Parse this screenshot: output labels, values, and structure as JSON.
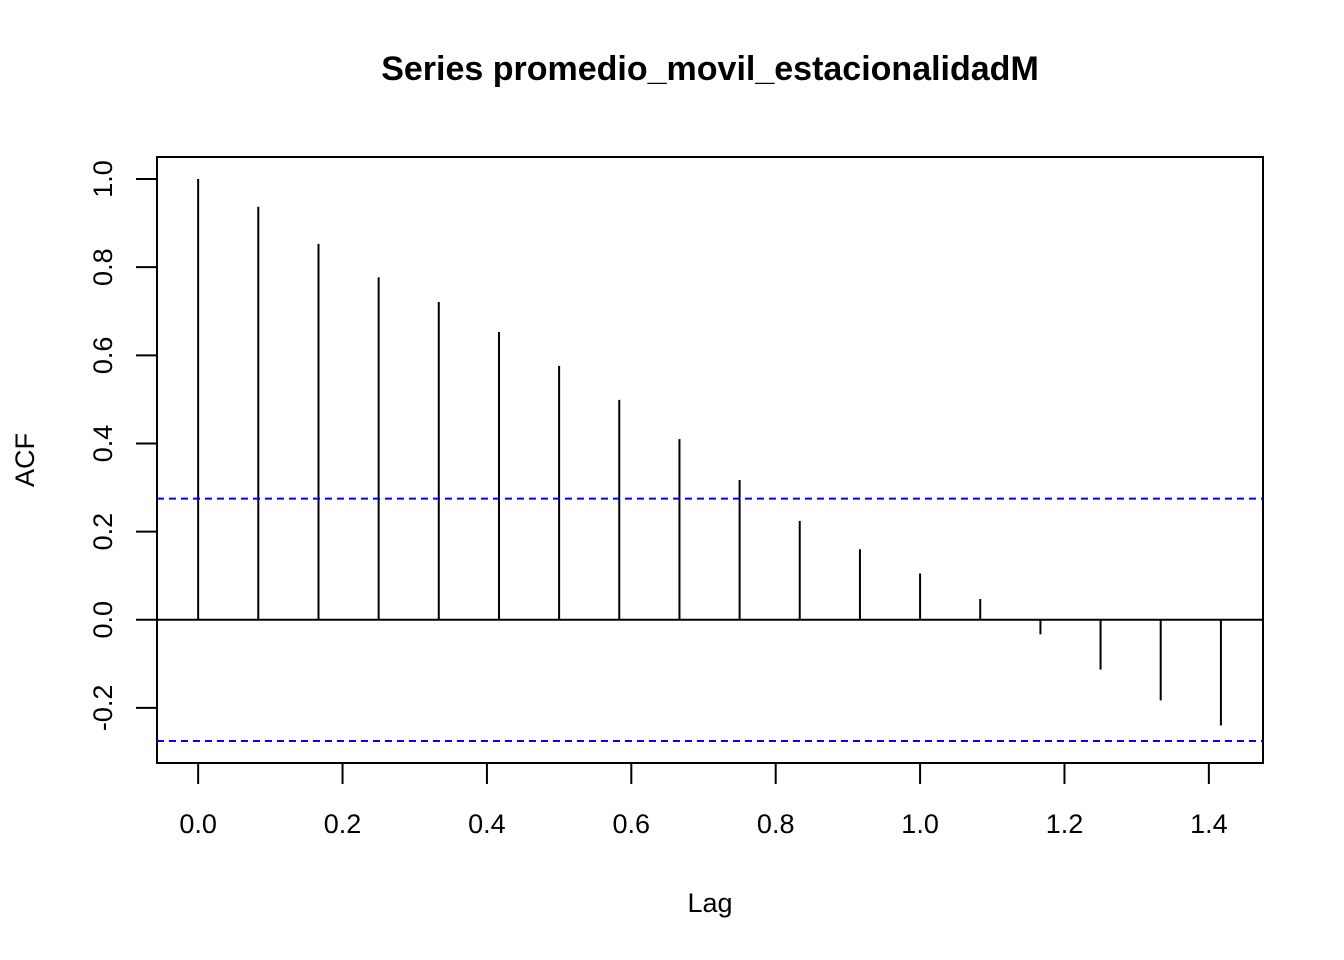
{
  "chart_data": {
    "type": "bar",
    "title": "Series  promedio_movil_estacionalidadM",
    "xlabel": "Lag",
    "ylabel": "ACF",
    "xlim": [
      -0.057,
      1.475
    ],
    "ylim": [
      -0.325,
      1.05
    ],
    "x_ticks": [
      0.0,
      0.2,
      0.4,
      0.6,
      0.8,
      1.0,
      1.2,
      1.4
    ],
    "x_tick_labels": [
      "0.0",
      "0.2",
      "0.4",
      "0.6",
      "0.8",
      "1.0",
      "1.2",
      "1.4"
    ],
    "y_ticks": [
      -0.2,
      0.0,
      0.2,
      0.4,
      0.6,
      0.8,
      1.0
    ],
    "y_tick_labels": [
      "-0.2",
      "0.0",
      "0.2",
      "0.4",
      "0.6",
      "0.8",
      "1.0"
    ],
    "lags": [
      0.0,
      0.0833,
      0.1667,
      0.25,
      0.3333,
      0.4167,
      0.5,
      0.5833,
      0.6667,
      0.75,
      0.8333,
      0.9167,
      1.0,
      1.0833,
      1.1667,
      1.25,
      1.3333,
      1.4167
    ],
    "acf": [
      1.0,
      0.937,
      0.853,
      0.777,
      0.721,
      0.653,
      0.576,
      0.499,
      0.41,
      0.317,
      0.224,
      0.16,
      0.105,
      0.047,
      -0.033,
      -0.113,
      -0.183,
      -0.24
    ],
    "confidence_limit": 0.275,
    "colors": {
      "bars": "#000000",
      "confidence": "#0000ff",
      "frame": "#000000"
    }
  }
}
